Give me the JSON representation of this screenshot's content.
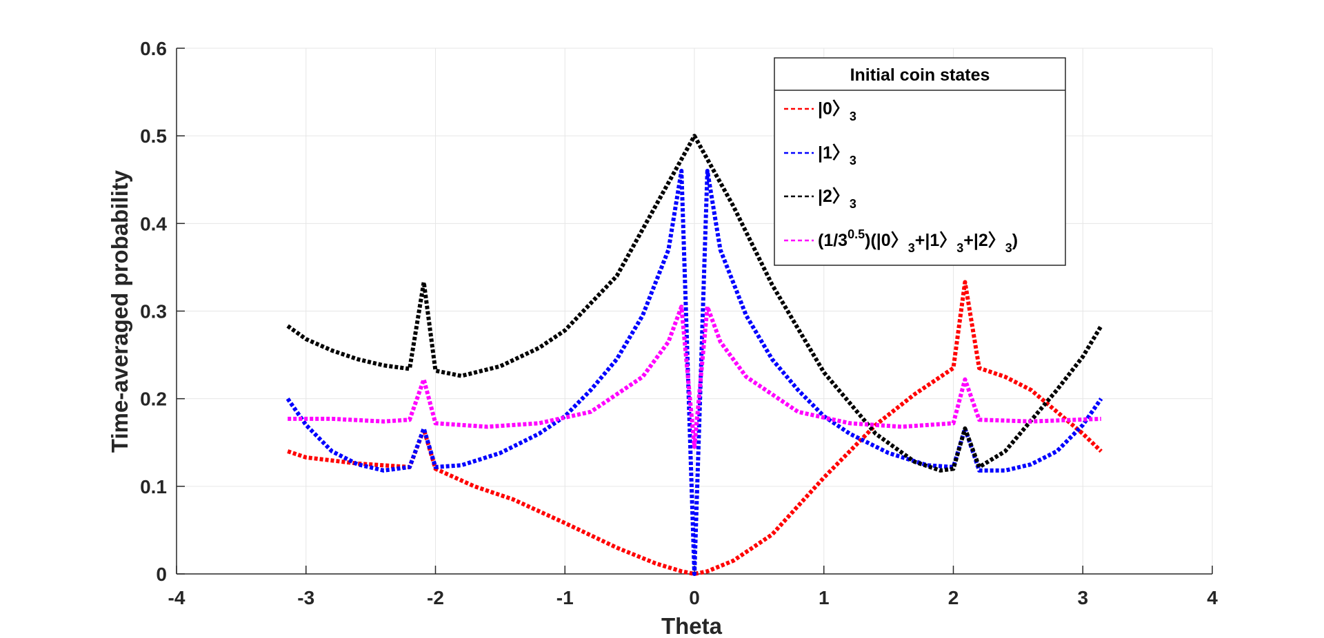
{
  "chart_data": {
    "type": "line",
    "xlabel": "Theta",
    "ylabel": "Time-averaged probability",
    "xlim": [
      -4,
      4
    ],
    "ylim": [
      0,
      0.6
    ],
    "xticks": [
      "-4",
      "-3",
      "-2",
      "-1",
      "0",
      "1",
      "2",
      "3",
      "4"
    ],
    "yticks": [
      "0",
      "0.1",
      "0.2",
      "0.3",
      "0.4",
      "0.5",
      "0.6"
    ],
    "grid": true,
    "legend": {
      "title": "Initial coin states",
      "placement": "top-right",
      "entries": [
        {
          "parts": [
            [
              "|0",
              "n"
            ],
            [
              "〉",
              "n"
            ],
            [
              "3",
              "sub"
            ]
          ]
        },
        {
          "parts": [
            [
              "|1",
              "n"
            ],
            [
              "〉",
              "n"
            ],
            [
              "3",
              "sub"
            ]
          ]
        },
        {
          "parts": [
            [
              "|2",
              "n"
            ],
            [
              "〉",
              "n"
            ],
            [
              "3",
              "sub"
            ]
          ]
        },
        {
          "parts": [
            [
              "(1/3",
              "n"
            ],
            [
              "0.5",
              "sup"
            ],
            [
              ")(|0",
              "n"
            ],
            [
              "〉",
              "n"
            ],
            [
              "3",
              "sub"
            ],
            [
              "+|1",
              "n"
            ],
            [
              "〉",
              "n"
            ],
            [
              "3",
              "sub"
            ],
            [
              "+|2",
              "n"
            ],
            [
              "〉",
              "n"
            ],
            [
              "3",
              "sub"
            ],
            [
              ")",
              "n"
            ]
          ]
        }
      ]
    },
    "series": [
      {
        "name": "|0>3",
        "color": "#ff0000",
        "x": [
          -3.1416,
          -3.0,
          -2.6,
          -2.2,
          -2.09,
          -2.0,
          -1.7,
          -1.4,
          -1.0,
          -0.6,
          -0.3,
          -0.1,
          0.0,
          0.1,
          0.3,
          0.6,
          1.0,
          1.4,
          1.7,
          2.0,
          2.09,
          2.2,
          2.4,
          2.6,
          2.8,
          3.0,
          3.1416
        ],
        "values": [
          0.14,
          0.133,
          0.126,
          0.122,
          0.165,
          0.12,
          0.1,
          0.085,
          0.058,
          0.03,
          0.012,
          0.003,
          0.0,
          0.003,
          0.015,
          0.045,
          0.11,
          0.17,
          0.205,
          0.235,
          0.333,
          0.235,
          0.225,
          0.21,
          0.185,
          0.16,
          0.14
        ]
      },
      {
        "name": "|1>3",
        "color": "#0000ff",
        "x": [
          -3.1416,
          -3.0,
          -2.8,
          -2.6,
          -2.4,
          -2.2,
          -2.09,
          -2.0,
          -1.8,
          -1.5,
          -1.2,
          -1.0,
          -0.8,
          -0.6,
          -0.4,
          -0.2,
          -0.1,
          0.0,
          0.1,
          0.2,
          0.4,
          0.6,
          0.8,
          1.0,
          1.2,
          1.5,
          1.8,
          2.0,
          2.09,
          2.2,
          2.4,
          2.6,
          2.8,
          3.0,
          3.1416
        ],
        "values": [
          0.2,
          0.17,
          0.14,
          0.125,
          0.118,
          0.122,
          0.166,
          0.122,
          0.124,
          0.138,
          0.16,
          0.18,
          0.21,
          0.245,
          0.295,
          0.37,
          0.46,
          0.0,
          0.46,
          0.37,
          0.295,
          0.245,
          0.21,
          0.18,
          0.16,
          0.138,
          0.124,
          0.122,
          0.166,
          0.118,
          0.118,
          0.125,
          0.14,
          0.17,
          0.2
        ]
      },
      {
        "name": "|2>3",
        "color": "#000000",
        "x": [
          -3.1416,
          -3.0,
          -2.8,
          -2.6,
          -2.4,
          -2.2,
          -2.09,
          -2.0,
          -1.8,
          -1.5,
          -1.2,
          -1.0,
          -0.6,
          -0.3,
          0.0,
          0.3,
          0.6,
          1.0,
          1.4,
          1.7,
          1.9,
          2.0,
          2.09,
          2.2,
          2.4,
          2.6,
          2.8,
          3.0,
          3.1416
        ],
        "values": [
          0.283,
          0.268,
          0.255,
          0.245,
          0.238,
          0.234,
          0.333,
          0.232,
          0.226,
          0.237,
          0.258,
          0.278,
          0.34,
          0.42,
          0.5,
          0.42,
          0.33,
          0.23,
          0.16,
          0.128,
          0.118,
          0.12,
          0.166,
          0.122,
          0.14,
          0.175,
          0.21,
          0.248,
          0.283
        ]
      },
      {
        "name": "(1/3^0.5)(|0>3+|1>3+|2>3)",
        "color": "#ff00ff",
        "x": [
          -3.1416,
          -2.8,
          -2.4,
          -2.2,
          -2.09,
          -2.0,
          -1.6,
          -1.2,
          -0.8,
          -0.4,
          -0.2,
          -0.1,
          0.0,
          0.1,
          0.2,
          0.4,
          0.8,
          1.2,
          1.6,
          2.0,
          2.09,
          2.2,
          2.6,
          3.1416
        ],
        "values": [
          0.177,
          0.177,
          0.174,
          0.176,
          0.222,
          0.172,
          0.168,
          0.172,
          0.185,
          0.225,
          0.265,
          0.305,
          0.145,
          0.305,
          0.265,
          0.225,
          0.185,
          0.172,
          0.168,
          0.172,
          0.222,
          0.176,
          0.174,
          0.177
        ]
      }
    ]
  }
}
